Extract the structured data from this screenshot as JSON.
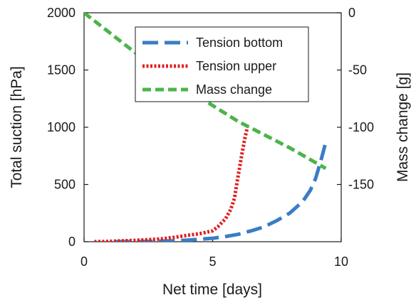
{
  "chart_data": {
    "type": "line",
    "xlabel": "Net time [days]",
    "ylabel_left": "Total suction [hPa]",
    "ylabel_right": "Mass change [g]",
    "xlim": [
      0,
      10
    ],
    "ylim_left": [
      0,
      2000
    ],
    "ylim_right": [
      -200,
      0
    ],
    "x_ticks": [
      "0",
      "5",
      "10"
    ],
    "y_left_ticks": [
      "0",
      "500",
      "1000",
      "1500",
      "2000"
    ],
    "y_right_ticks": [
      "-150",
      "-100",
      "-50",
      "0"
    ],
    "legend_position": "upper-right",
    "grid": false,
    "series": [
      {
        "name": "Tension bottom",
        "axis": "left",
        "style": "dashed",
        "color": "#3a7dc4",
        "x": [
          1.2,
          2.5,
          3.5,
          4.0,
          5.0,
          5.5,
          6.0,
          6.5,
          7.0,
          7.5,
          8.0,
          8.5,
          8.8,
          9.0,
          9.2,
          9.4
        ],
        "y": [
          0,
          2,
          8,
          13,
          30,
          45,
          65,
          95,
          130,
          185,
          250,
          350,
          450,
          550,
          700,
          870
        ]
      },
      {
        "name": "Tension upper",
        "axis": "left",
        "style": "dotted",
        "color": "#e02020",
        "x": [
          0.4,
          1.0,
          1.5,
          2.0,
          2.5,
          3.0,
          3.5,
          4.0,
          4.5,
          5.0,
          5.2,
          5.5,
          5.7,
          5.85,
          5.95,
          6.05,
          6.15,
          6.25,
          6.35
        ],
        "y": [
          0,
          3,
          8,
          12,
          18,
          25,
          38,
          55,
          70,
          95,
          130,
          200,
          280,
          380,
          520,
          650,
          780,
          900,
          1000
        ]
      },
      {
        "name": "Mass change",
        "axis": "right",
        "style": "dashed",
        "color": "#4ab54a",
        "x": [
          0,
          2,
          4,
          6,
          8,
          9.4
        ],
        "y": [
          0,
          -35,
          -67,
          -95,
          -118,
          -136
        ]
      }
    ]
  }
}
